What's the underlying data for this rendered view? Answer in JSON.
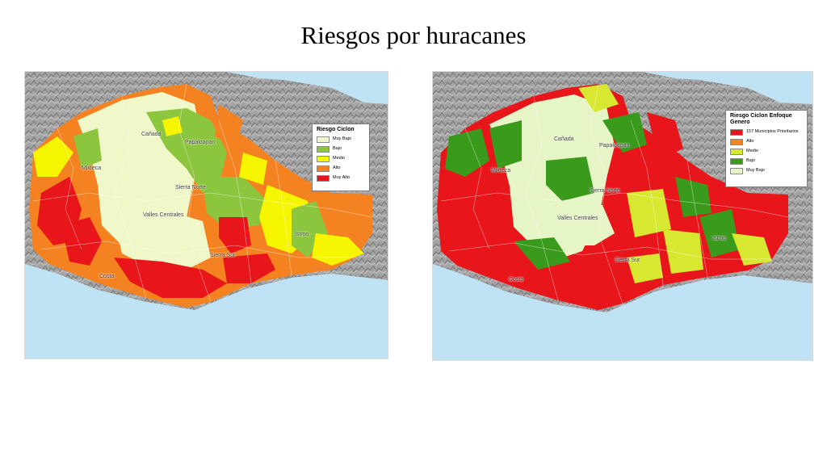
{
  "slide": {
    "title": "Riesgos por huracanes"
  },
  "maps": [
    {
      "legend": {
        "title": "Riesgo Ciclon",
        "items": [
          {
            "label": "Muy Bajo",
            "color": "#f0f7c8"
          },
          {
            "label": "Bajo",
            "color": "#8cc63f"
          },
          {
            "label": "Medio",
            "color": "#f5f500"
          },
          {
            "label": "Alto",
            "color": "#f58220"
          },
          {
            "label": "Muy Alto",
            "color": "#e8151b"
          }
        ]
      },
      "regions": [
        "Mixteca",
        "Cañada",
        "Papaloapan",
        "Sierra Norte",
        "Valles Centrales",
        "Istmo",
        "Sierra Sur",
        "Costa"
      ]
    },
    {
      "legend": {
        "title": "Riesgo Ciclon Enfoque Genero",
        "items": [
          {
            "label": "157 Municipios Prioritarios",
            "color": "#e8151b"
          },
          {
            "label": "Alto",
            "color": "#f58220"
          },
          {
            "label": "Medio",
            "color": "#d8e830"
          },
          {
            "label": "Bajo",
            "color": "#3a9a1c"
          },
          {
            "label": "Muy Bajo",
            "color": "#e6f5c5"
          }
        ]
      },
      "regions": [
        "Mixteca",
        "Cañada",
        "Papaloapan",
        "Sierra Norte",
        "Valles Centrales",
        "Istmo",
        "Sierra Sur",
        "Costa"
      ]
    }
  ],
  "colors": {
    "sea": "#bfe3f5",
    "relief": "#9a9a9a"
  }
}
